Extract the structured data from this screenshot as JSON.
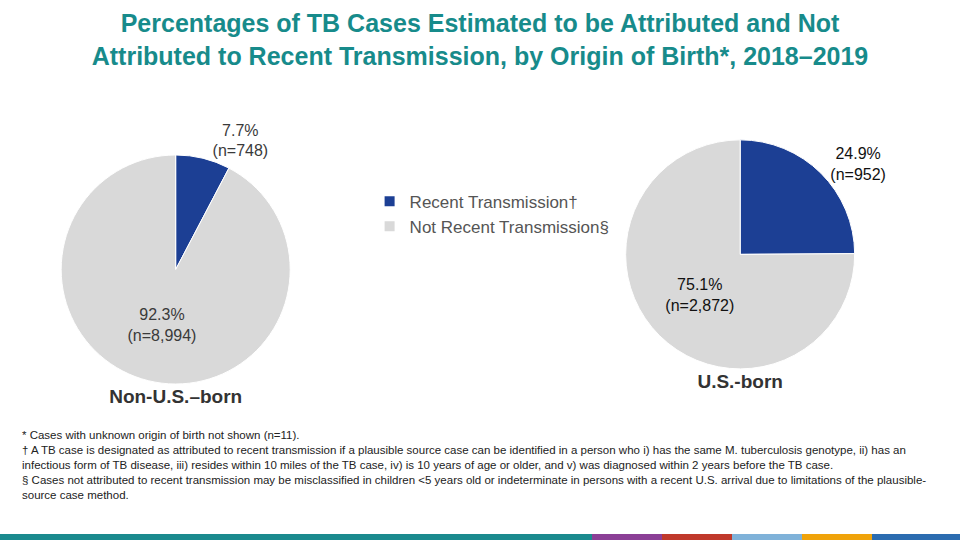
{
  "title": "Percentages of TB Cases Estimated to be Attributed and Not\nAttributed to Recent Transmission, by Origin of Birth*, 2018–2019",
  "chart_data": [
    {
      "type": "pie",
      "title": "Non-U.S.–born",
      "categories": [
        "Recent Transmission†",
        "Not Recent Transmission§"
      ],
      "values": [
        7.7,
        92.3
      ],
      "value_labels": [
        "7.7%\n(n=748)",
        "92.3%\n(n=8,994)"
      ],
      "colors": [
        "#1c3f94",
        "#d9d9d9"
      ],
      "data_labels": true
    },
    {
      "type": "pie",
      "title": "U.S.-born",
      "categories": [
        "Recent Transmission†",
        "Not Recent Transmission§"
      ],
      "values": [
        24.9,
        75.1
      ],
      "value_labels": [
        "24.9%\n(n=952)",
        "75.1%\n(n=2,872)"
      ],
      "colors": [
        "#1c3f94",
        "#d9d9d9"
      ],
      "data_labels": true
    }
  ],
  "footnotes": [
    "* Cases with unknown origin of birth not shown (n=11).",
    "† A TB case is designated as attributed to recent transmission if a plausible source case can be identified in a person who i) has the same M. tuberculosis genotype, ii) has an infectious form of TB disease, iii) resides within 10 miles of the TB case, iv) is 10 years of age or older, and v) was diagnosed within 2 years before the TB case.",
    "§ Cases not attributed to recent transmission may be misclassified in children <5 years old or indeterminate in persons with a recent U.S. arrival due to limitations of the plausible-source case method."
  ]
}
